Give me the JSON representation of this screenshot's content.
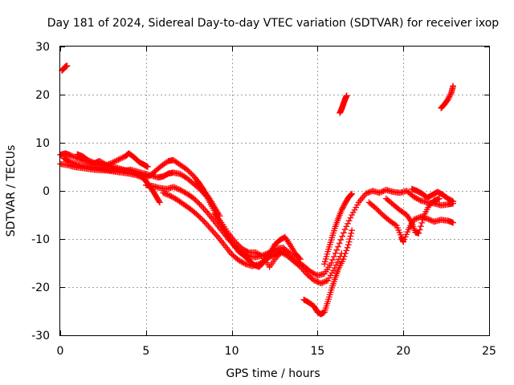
{
  "chart_data": {
    "type": "scatter",
    "title": "Day 181 of 2024, Sidereal Day-to-day VTEC variation (SDTVAR) for receiver ixop",
    "xlabel": "GPS time / hours",
    "ylabel": "SDTVAR / TECUs",
    "xlim": [
      0,
      25
    ],
    "ylim": [
      -30,
      30
    ],
    "xticks": [
      0,
      5,
      10,
      15,
      20,
      25
    ],
    "xtick_labels": [
      "0",
      "5",
      "10",
      "15",
      "20",
      "25"
    ],
    "yticks": [
      -30,
      -20,
      -10,
      0,
      10,
      20,
      30
    ],
    "ytick_labels": [
      "-30",
      "-20",
      "-10",
      "0",
      "10",
      "20",
      "30"
    ],
    "grid": true,
    "marker": "plus",
    "color": "#ff0000",
    "series": [
      {
        "name": "s1",
        "points": [
          [
            0.1,
            25
          ],
          [
            0.2,
            25.4
          ],
          [
            0.3,
            25.8
          ],
          [
            0.4,
            26
          ]
        ]
      },
      {
        "name": "s2",
        "points": [
          [
            0.0,
            7.5
          ],
          [
            0.3,
            7.8
          ],
          [
            0.6,
            7.4
          ],
          [
            1.0,
            6.8
          ],
          [
            1.4,
            6.2
          ],
          [
            1.8,
            5.8
          ],
          [
            2.2,
            5.6
          ],
          [
            2.6,
            5.2
          ],
          [
            3.0,
            5.8
          ],
          [
            3.4,
            6.5
          ],
          [
            3.8,
            7.2
          ],
          [
            4.0,
            7.8
          ],
          [
            4.3,
            7.0
          ],
          [
            4.6,
            6.0
          ],
          [
            4.9,
            5.4
          ],
          [
            5.1,
            5.0
          ]
        ]
      },
      {
        "name": "s3",
        "points": [
          [
            0.0,
            5.6
          ],
          [
            0.4,
            5.4
          ],
          [
            0.8,
            5.0
          ],
          [
            1.2,
            4.8
          ],
          [
            1.6,
            4.6
          ],
          [
            2.0,
            4.4
          ],
          [
            2.4,
            4.3
          ],
          [
            2.8,
            4.2
          ],
          [
            3.2,
            4.0
          ],
          [
            3.6,
            3.8
          ],
          [
            4.0,
            3.6
          ],
          [
            4.4,
            3.3
          ],
          [
            4.8,
            2.8
          ],
          [
            5.0,
            2.0
          ],
          [
            5.2,
            1.0
          ],
          [
            5.4,
            0.0
          ],
          [
            5.6,
            -1.2
          ],
          [
            5.8,
            -2.4
          ]
        ]
      },
      {
        "name": "s4",
        "points": [
          [
            0.2,
            6.8
          ],
          [
            0.5,
            6.2
          ],
          [
            0.9,
            5.6
          ],
          [
            1.3,
            5.2
          ],
          [
            1.7,
            5.0
          ],
          [
            2.1,
            4.8
          ],
          [
            2.5,
            4.6
          ],
          [
            2.9,
            4.3
          ],
          [
            3.3,
            4.4
          ],
          [
            3.7,
            4.2
          ],
          [
            4.1,
            4.4
          ],
          [
            4.5,
            4.0
          ],
          [
            4.9,
            3.6
          ],
          [
            5.3,
            3.2
          ],
          [
            5.7,
            2.8
          ],
          [
            6.0,
            3.0
          ],
          [
            6.3,
            3.6
          ],
          [
            6.6,
            3.8
          ],
          [
            7.0,
            3.5
          ],
          [
            7.4,
            2.6
          ],
          [
            7.8,
            1.4
          ],
          [
            8.2,
            0.2
          ],
          [
            8.5,
            -1.0
          ]
        ]
      },
      {
        "name": "s5",
        "points": [
          [
            1.0,
            7.6
          ],
          [
            1.3,
            7.2
          ],
          [
            1.6,
            6.4
          ],
          [
            2.0,
            5.8
          ],
          [
            2.3,
            6.2
          ],
          [
            2.7,
            5.4
          ],
          [
            3.1,
            5.0
          ],
          [
            3.5,
            4.6
          ],
          [
            3.9,
            4.2
          ],
          [
            4.3,
            3.8
          ],
          [
            4.7,
            3.2
          ],
          [
            5.1,
            2.8
          ],
          [
            5.5,
            4.0
          ],
          [
            5.9,
            5.2
          ],
          [
            6.3,
            6.2
          ],
          [
            6.6,
            6.4
          ],
          [
            7.0,
            5.4
          ],
          [
            7.4,
            4.4
          ],
          [
            7.8,
            3.0
          ],
          [
            8.1,
            1.6
          ],
          [
            8.4,
            0.0
          ],
          [
            8.7,
            -1.6
          ],
          [
            9.0,
            -3.4
          ],
          [
            9.3,
            -5.2
          ]
        ]
      },
      {
        "name": "s6",
        "points": [
          [
            5.0,
            1.2
          ],
          [
            5.4,
            1.0
          ],
          [
            5.8,
            0.6
          ],
          [
            6.2,
            0.4
          ],
          [
            6.6,
            0.8
          ],
          [
            7.0,
            0.2
          ],
          [
            7.4,
            -0.6
          ],
          [
            7.8,
            -1.6
          ],
          [
            8.2,
            -3.0
          ],
          [
            8.6,
            -4.6
          ],
          [
            9.0,
            -6.4
          ],
          [
            9.4,
            -8.2
          ],
          [
            9.8,
            -10.0
          ],
          [
            10.2,
            -11.6
          ],
          [
            10.6,
            -12.8
          ],
          [
            11.0,
            -13.6
          ],
          [
            11.4,
            -13.8
          ],
          [
            11.8,
            -13.4
          ],
          [
            12.2,
            -12.8
          ],
          [
            12.6,
            -12.0
          ],
          [
            13.0,
            -11.8
          ],
          [
            13.4,
            -13.0
          ],
          [
            13.8,
            -14.6
          ],
          [
            14.2,
            -15.6
          ],
          [
            14.6,
            -16.8
          ],
          [
            15.0,
            -17.6
          ],
          [
            15.4,
            -17.2
          ],
          [
            15.8,
            -15.0
          ],
          [
            16.2,
            -11.6
          ],
          [
            16.6,
            -8.0
          ],
          [
            17.0,
            -5.0
          ],
          [
            17.4,
            -2.4
          ],
          [
            17.8,
            -0.6
          ],
          [
            18.2,
            0.0
          ],
          [
            18.6,
            -0.4
          ],
          [
            19.0,
            0.2
          ],
          [
            19.4,
            -0.2
          ],
          [
            19.8,
            -0.4
          ],
          [
            20.2,
            0.0
          ],
          [
            20.6,
            -1.2
          ],
          [
            21.0,
            -2.0
          ],
          [
            21.4,
            -2.4
          ],
          [
            21.8,
            -2.6
          ],
          [
            22.2,
            -3.0
          ],
          [
            22.6,
            -2.8
          ],
          [
            22.9,
            -2.6
          ]
        ]
      },
      {
        "name": "s7",
        "points": [
          [
            6.0,
            -0.4
          ],
          [
            6.4,
            -1.0
          ],
          [
            6.8,
            -1.8
          ],
          [
            7.2,
            -2.8
          ],
          [
            7.6,
            -3.8
          ],
          [
            8.0,
            -5.0
          ],
          [
            8.4,
            -6.4
          ],
          [
            8.8,
            -8.0
          ],
          [
            9.2,
            -9.6
          ],
          [
            9.6,
            -11.4
          ],
          [
            10.0,
            -13.2
          ],
          [
            10.4,
            -14.4
          ],
          [
            10.8,
            -15.2
          ],
          [
            11.2,
            -15.6
          ],
          [
            11.6,
            -15.2
          ],
          [
            12.0,
            -14.2
          ],
          [
            12.4,
            -13.4
          ],
          [
            12.8,
            -12.6
          ],
          [
            13.2,
            -13.4
          ],
          [
            13.6,
            -14.6
          ],
          [
            14.0,
            -15.8
          ],
          [
            14.4,
            -17.4
          ],
          [
            14.8,
            -18.6
          ],
          [
            15.2,
            -19.2
          ],
          [
            15.6,
            -18.6
          ],
          [
            16.0,
            -16.0
          ],
          [
            16.4,
            -13.0
          ]
        ]
      },
      {
        "name": "s8",
        "points": [
          [
            8.0,
            2.0
          ],
          [
            8.3,
            0.4
          ],
          [
            8.6,
            -1.6
          ],
          [
            8.9,
            -3.6
          ],
          [
            9.2,
            -5.8
          ],
          [
            9.5,
            -7.8
          ],
          [
            9.8,
            -9.6
          ],
          [
            10.1,
            -11.2
          ],
          [
            10.4,
            -12.6
          ],
          [
            10.7,
            -13.4
          ],
          [
            11.0,
            -14.4
          ],
          [
            11.3,
            -15.4
          ],
          [
            11.6,
            -15.8
          ],
          [
            11.9,
            -14.6
          ],
          [
            12.2,
            -13.0
          ],
          [
            12.5,
            -11.2
          ],
          [
            12.8,
            -10.2
          ],
          [
            13.1,
            -9.6
          ],
          [
            13.4,
            -11.2
          ],
          [
            13.7,
            -13.0
          ],
          [
            14.0,
            -14.2
          ]
        ]
      },
      {
        "name": "s9",
        "points": [
          [
            9.0,
            -4.8
          ],
          [
            9.4,
            -6.6
          ],
          [
            9.8,
            -8.8
          ],
          [
            10.2,
            -10.6
          ],
          [
            10.6,
            -12.0
          ],
          [
            11.0,
            -12.8
          ],
          [
            11.4,
            -12.8
          ],
          [
            11.8,
            -13.6
          ],
          [
            12.2,
            -15.8
          ],
          [
            12.6,
            -13.8
          ],
          [
            13.0,
            -12.4
          ]
        ]
      },
      {
        "name": "s10",
        "points": [
          [
            14.2,
            -22.6
          ],
          [
            14.5,
            -23.2
          ],
          [
            14.8,
            -24.0
          ],
          [
            15.0,
            -25.2
          ],
          [
            15.2,
            -25.6
          ],
          [
            15.4,
            -25.2
          ],
          [
            15.6,
            -23.0
          ],
          [
            15.8,
            -20.6
          ],
          [
            16.0,
            -18.4
          ],
          [
            16.2,
            -16.4
          ],
          [
            16.5,
            -14.2
          ],
          [
            16.8,
            -11.2
          ],
          [
            17.0,
            -8.2
          ]
        ]
      },
      {
        "name": "s11",
        "points": [
          [
            15.4,
            -15.2
          ],
          [
            15.6,
            -12.6
          ],
          [
            15.8,
            -10.2
          ],
          [
            16.0,
            -7.8
          ],
          [
            16.2,
            -5.8
          ],
          [
            16.4,
            -4.0
          ],
          [
            16.6,
            -2.6
          ],
          [
            16.8,
            -1.4
          ],
          [
            17.0,
            -0.6
          ]
        ]
      },
      {
        "name": "s12",
        "points": [
          [
            16.3,
            16.2
          ],
          [
            16.4,
            17.0
          ],
          [
            16.5,
            18.0
          ],
          [
            16.6,
            19.0
          ],
          [
            16.7,
            19.8
          ]
        ]
      },
      {
        "name": "s13",
        "points": [
          [
            18.0,
            -2.4
          ],
          [
            18.4,
            -3.6
          ],
          [
            18.8,
            -5.0
          ],
          [
            19.2,
            -6.2
          ],
          [
            19.6,
            -7.2
          ],
          [
            19.9,
            -9.6
          ],
          [
            20.0,
            -10.6
          ],
          [
            20.3,
            -8.0
          ],
          [
            20.6,
            -6.0
          ],
          [
            21.0,
            -5.4
          ],
          [
            21.4,
            -5.8
          ],
          [
            21.8,
            -6.4
          ],
          [
            22.2,
            -6.0
          ],
          [
            22.6,
            -6.2
          ],
          [
            22.9,
            -6.6
          ]
        ]
      },
      {
        "name": "s14",
        "points": [
          [
            19.0,
            -1.6
          ],
          [
            19.4,
            -2.8
          ],
          [
            19.8,
            -4.0
          ],
          [
            20.2,
            -5.0
          ],
          [
            20.5,
            -6.6
          ],
          [
            20.7,
            -8.6
          ],
          [
            20.9,
            -8.8
          ],
          [
            21.2,
            -5.2
          ],
          [
            21.5,
            -3.0
          ],
          [
            21.8,
            -2.0
          ],
          [
            22.1,
            -1.6
          ]
        ]
      },
      {
        "name": "s15",
        "points": [
          [
            20.5,
            0.4
          ],
          [
            20.8,
            0.0
          ],
          [
            21.1,
            -0.6
          ],
          [
            21.4,
            -1.4
          ],
          [
            21.7,
            -0.8
          ],
          [
            22.0,
            -0.2
          ],
          [
            22.3,
            -0.8
          ],
          [
            22.6,
            -1.6
          ],
          [
            22.9,
            -2.2
          ]
        ]
      },
      {
        "name": "s16",
        "points": [
          [
            22.2,
            17.2
          ],
          [
            22.4,
            18.0
          ],
          [
            22.6,
            19.0
          ],
          [
            22.8,
            20.4
          ],
          [
            22.9,
            21.8
          ]
        ]
      }
    ]
  }
}
